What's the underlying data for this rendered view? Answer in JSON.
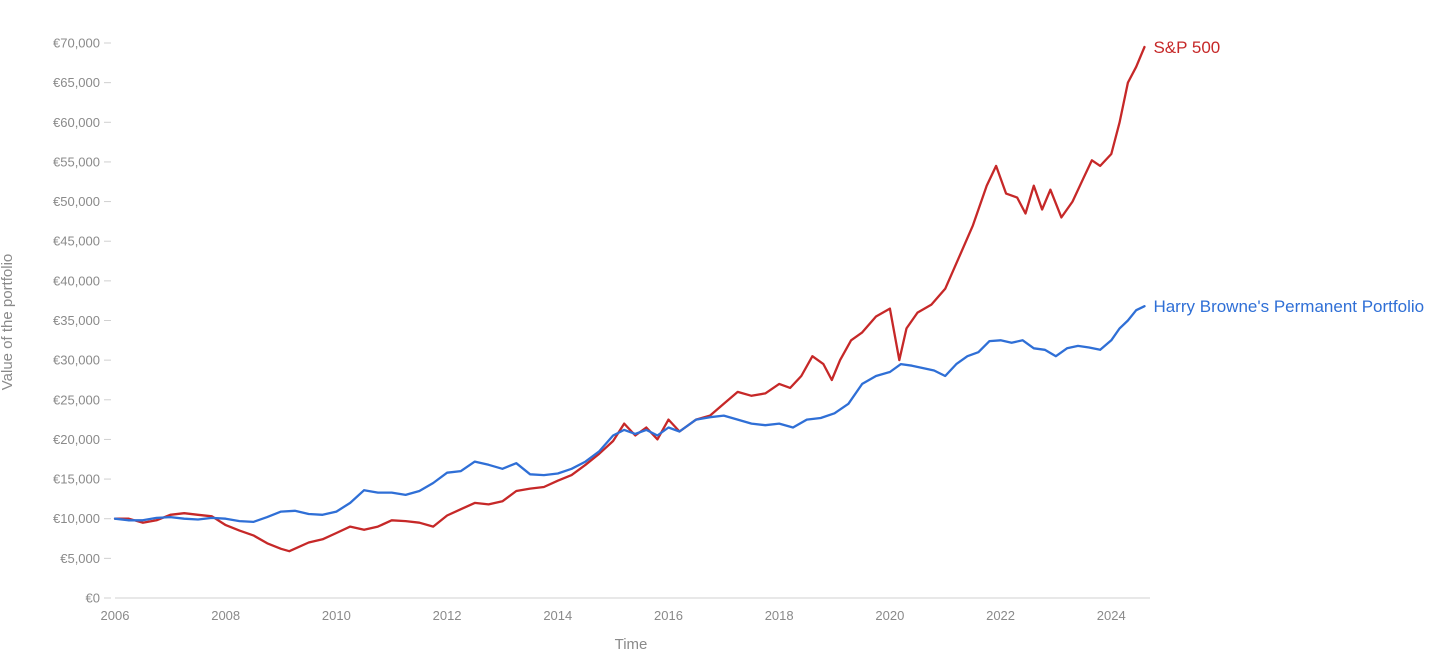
{
  "chart_data": {
    "type": "line",
    "title": "",
    "xlabel": "Time",
    "ylabel": "Value of the portfolio",
    "xlim": [
      2006,
      2024.7
    ],
    "ylim": [
      0,
      70000
    ],
    "grid": false,
    "legend": "end-of-line labels",
    "x_ticks": [
      2006,
      2008,
      2010,
      2012,
      2014,
      2016,
      2018,
      2020,
      2022,
      2024
    ],
    "x_tick_labels": [
      "2006",
      "2008",
      "2010",
      "2012",
      "2014",
      "2016",
      "2018",
      "2020",
      "2022",
      "2024"
    ],
    "y_ticks": [
      0,
      5000,
      10000,
      15000,
      20000,
      25000,
      30000,
      35000,
      40000,
      45000,
      50000,
      55000,
      60000,
      65000,
      70000
    ],
    "y_tick_labels": [
      "€0",
      "€5,000",
      "€10,000",
      "€15,000",
      "€20,000",
      "€25,000",
      "€30,000",
      "€35,000",
      "€40,000",
      "€45,000",
      "€50,000",
      "€55,000",
      "€60,000",
      "€65,000",
      "€70,000"
    ],
    "series": [
      {
        "name": "S&P 500",
        "color": "#c62828",
        "x": [
          2006.0,
          2006.25,
          2006.5,
          2006.75,
          2007.0,
          2007.25,
          2007.5,
          2007.75,
          2008.0,
          2008.25,
          2008.5,
          2008.75,
          2009.0,
          2009.15,
          2009.5,
          2009.75,
          2010.0,
          2010.25,
          2010.5,
          2010.75,
          2011.0,
          2011.25,
          2011.5,
          2011.75,
          2012.0,
          2012.25,
          2012.5,
          2012.75,
          2013.0,
          2013.25,
          2013.5,
          2013.75,
          2014.0,
          2014.25,
          2014.5,
          2014.75,
          2015.0,
          2015.2,
          2015.4,
          2015.6,
          2015.8,
          2016.0,
          2016.2,
          2016.5,
          2016.75,
          2017.0,
          2017.25,
          2017.5,
          2017.75,
          2018.0,
          2018.2,
          2018.4,
          2018.6,
          2018.8,
          2018.95,
          2019.1,
          2019.3,
          2019.5,
          2019.75,
          2020.0,
          2020.17,
          2020.3,
          2020.5,
          2020.75,
          2021.0,
          2021.25,
          2021.5,
          2021.75,
          2021.92,
          2022.1,
          2022.3,
          2022.45,
          2022.6,
          2022.75,
          2022.9,
          2023.1,
          2023.3,
          2023.5,
          2023.65,
          2023.8,
          2024.0,
          2024.15,
          2024.3,
          2024.45,
          2024.6
        ],
        "values": [
          10000,
          10000,
          9500,
          9800,
          10500,
          10700,
          10500,
          10300,
          9200,
          8500,
          7900,
          6900,
          6200,
          5900,
          7000,
          7400,
          8200,
          9000,
          8600,
          9000,
          9800,
          9700,
          9500,
          9000,
          10400,
          11200,
          12000,
          11800,
          12200,
          13500,
          13800,
          14000,
          14800,
          15500,
          16800,
          18200,
          19800,
          22000,
          20500,
          21500,
          20000,
          22500,
          21000,
          22500,
          23000,
          24500,
          26000,
          25500,
          25800,
          27000,
          26500,
          28000,
          30500,
          29500,
          27500,
          30000,
          32500,
          33500,
          35500,
          36500,
          30000,
          34000,
          36000,
          37000,
          39000,
          43000,
          47000,
          52000,
          54500,
          51000,
          50500,
          48500,
          52000,
          49000,
          51500,
          48000,
          50000,
          53000,
          55200,
          54500,
          56000,
          60000,
          65000,
          67000,
          69500
        ]
      },
      {
        "name": "Harry Browne's Permanent Portfolio",
        "color": "#2f6fd6",
        "x": [
          2006.0,
          2006.25,
          2006.5,
          2006.75,
          2007.0,
          2007.25,
          2007.5,
          2007.75,
          2008.0,
          2008.25,
          2008.5,
          2008.75,
          2009.0,
          2009.25,
          2009.5,
          2009.75,
          2010.0,
          2010.25,
          2010.5,
          2010.75,
          2011.0,
          2011.25,
          2011.5,
          2011.75,
          2012.0,
          2012.25,
          2012.5,
          2012.75,
          2013.0,
          2013.25,
          2013.5,
          2013.75,
          2014.0,
          2014.25,
          2014.5,
          2014.75,
          2015.0,
          2015.2,
          2015.4,
          2015.6,
          2015.8,
          2016.0,
          2016.2,
          2016.5,
          2016.75,
          2017.0,
          2017.25,
          2017.5,
          2017.75,
          2018.0,
          2018.25,
          2018.5,
          2018.75,
          2019.0,
          2019.25,
          2019.5,
          2019.75,
          2020.0,
          2020.2,
          2020.4,
          2020.6,
          2020.8,
          2021.0,
          2021.2,
          2021.4,
          2021.6,
          2021.8,
          2022.0,
          2022.2,
          2022.4,
          2022.6,
          2022.8,
          2023.0,
          2023.2,
          2023.4,
          2023.6,
          2023.8,
          2024.0,
          2024.15,
          2024.3,
          2024.45,
          2024.6
        ],
        "values": [
          10000,
          9800,
          9800,
          10100,
          10200,
          10000,
          9900,
          10100,
          10000,
          9700,
          9600,
          10200,
          10900,
          11000,
          10600,
          10500,
          10900,
          12000,
          13600,
          13300,
          13300,
          13000,
          13500,
          14500,
          15800,
          16000,
          17200,
          16800,
          16300,
          17000,
          15600,
          15500,
          15700,
          16300,
          17200,
          18500,
          20500,
          21200,
          20700,
          21200,
          20500,
          21500,
          21000,
          22500,
          22800,
          23000,
          22500,
          22000,
          21800,
          22000,
          21500,
          22500,
          22700,
          23300,
          24500,
          27000,
          28000,
          28500,
          29500,
          29300,
          29000,
          28700,
          28000,
          29500,
          30500,
          31000,
          32400,
          32500,
          32200,
          32500,
          31500,
          31300,
          30500,
          31500,
          31800,
          31600,
          31300,
          32500,
          34000,
          35000,
          36300,
          36800
        ]
      }
    ]
  }
}
